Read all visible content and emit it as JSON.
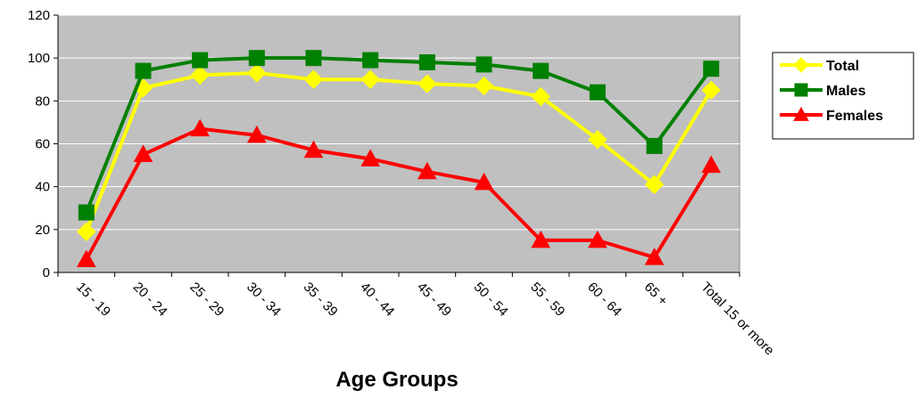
{
  "chart_data": {
    "type": "line",
    "categories": [
      "15 - 19",
      "20 - 24",
      "25 - 29",
      "30 - 34",
      "35 - 39",
      "40 - 44",
      "45 - 49",
      "50 - 54",
      "55 - 59",
      "60 - 64",
      "65 +",
      "Total 15 or more"
    ],
    "series": [
      {
        "name": "Total",
        "color": "#ffff00",
        "marker": "diamond",
        "values": [
          19,
          86,
          92,
          93,
          90,
          90,
          88,
          87,
          82,
          62,
          41,
          85
        ]
      },
      {
        "name": "Males",
        "color": "#008000",
        "marker": "square",
        "values": [
          28,
          94,
          99,
          100,
          100,
          99,
          98,
          97,
          94,
          84,
          59,
          95
        ]
      },
      {
        "name": "Females",
        "color": "#ff0000",
        "marker": "triangle",
        "values": [
          6,
          55,
          67,
          64,
          57,
          53,
          47,
          42,
          15,
          15,
          7,
          50
        ]
      }
    ],
    "title": "",
    "xlabel": "Age Groups",
    "ylabel": "",
    "ylim": [
      0,
      120
    ],
    "yticks": [
      "0",
      "20",
      "40",
      "60",
      "80",
      "100",
      "120"
    ],
    "grid": true,
    "plot_background": "#c0c0c0",
    "legend_position": "right"
  }
}
